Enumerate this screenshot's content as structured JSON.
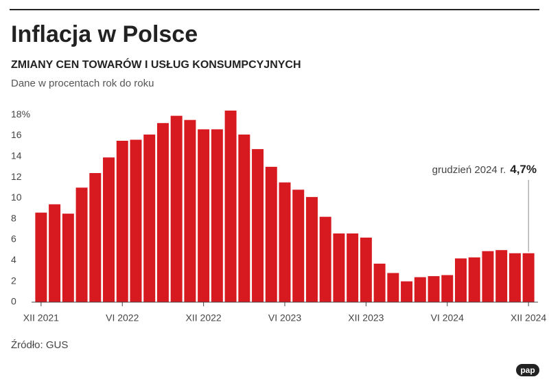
{
  "chart_data": {
    "type": "bar",
    "title": "Inflacja w Polsce",
    "subtitle": "ZMIANY CEN TOWARÓW I USŁUG KONSUMPCYJNYCH",
    "note": "Dane w procentach rok do roku",
    "source": "Źródło: GUS",
    "logo": "pap",
    "categories": [
      "XII 2021",
      null,
      null,
      null,
      null,
      null,
      "VI 2022",
      null,
      null,
      null,
      null,
      null,
      "XII 2022",
      null,
      null,
      null,
      null,
      null,
      "VI 2023",
      null,
      null,
      null,
      null,
      null,
      "XII 2023",
      null,
      null,
      null,
      null,
      null,
      "VI 2024",
      null,
      null,
      null,
      null,
      null,
      "XII 2024"
    ],
    "values": [
      8.6,
      9.4,
      8.5,
      11.0,
      12.4,
      13.9,
      15.5,
      15.6,
      16.1,
      17.2,
      17.9,
      17.5,
      16.6,
      16.6,
      18.4,
      16.1,
      14.7,
      13.0,
      11.5,
      10.8,
      10.1,
      8.2,
      6.6,
      6.6,
      6.2,
      3.7,
      2.8,
      2.0,
      2.4,
      2.5,
      2.6,
      4.2,
      4.3,
      4.9,
      5.0,
      4.7,
      4.7
    ],
    "color": "#d71920",
    "ylim": [
      0,
      18.6
    ],
    "yticks": [
      0,
      2,
      4,
      6,
      8,
      10,
      12,
      14,
      16,
      {
        "value": 18,
        "label": "18%"
      }
    ],
    "annotation": {
      "text": "grudzień 2024 r.",
      "label": "4,7%"
    }
  }
}
